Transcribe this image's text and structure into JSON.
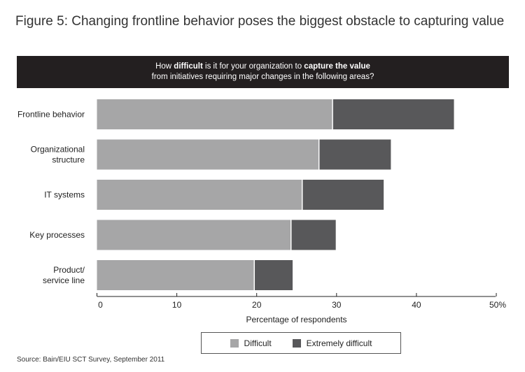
{
  "figure_title": "Figure 5: Changing frontline behavior poses the biggest obstacle to capturing value",
  "question": {
    "line1_pre": "How ",
    "line1_bold1": "difficult",
    "line1_mid": " is it for your organization to ",
    "line1_bold2": "capture the value",
    "line2": "from initiatives requiring major changes in the following areas?"
  },
  "source": "Source: Bain/EIU SCT Survey, September 2011",
  "colors": {
    "difficult": "#a6a6a7",
    "extremely_difficult": "#58585a",
    "header_bg": "#231f20"
  },
  "chart_data": {
    "type": "bar",
    "orientation": "horizontal",
    "stacked": true,
    "categories": [
      [
        "Frontline behavior"
      ],
      [
        "Organizational",
        "structure"
      ],
      [
        "IT systems"
      ],
      [
        "Key processes"
      ],
      [
        "Product/",
        "service line"
      ]
    ],
    "series": [
      {
        "name": "Difficult",
        "values": [
          29.5,
          27.8,
          25.7,
          24.3,
          19.7
        ]
      },
      {
        "name": "Extremely difficult",
        "values": [
          15.2,
          9.0,
          10.2,
          5.6,
          4.8
        ]
      }
    ],
    "xlabel": "Percentage of respondents",
    "xlim": [
      0,
      50
    ],
    "xticks": [
      "0",
      "10",
      "20",
      "30",
      "40",
      "50%"
    ],
    "legend_position": "bottom"
  }
}
